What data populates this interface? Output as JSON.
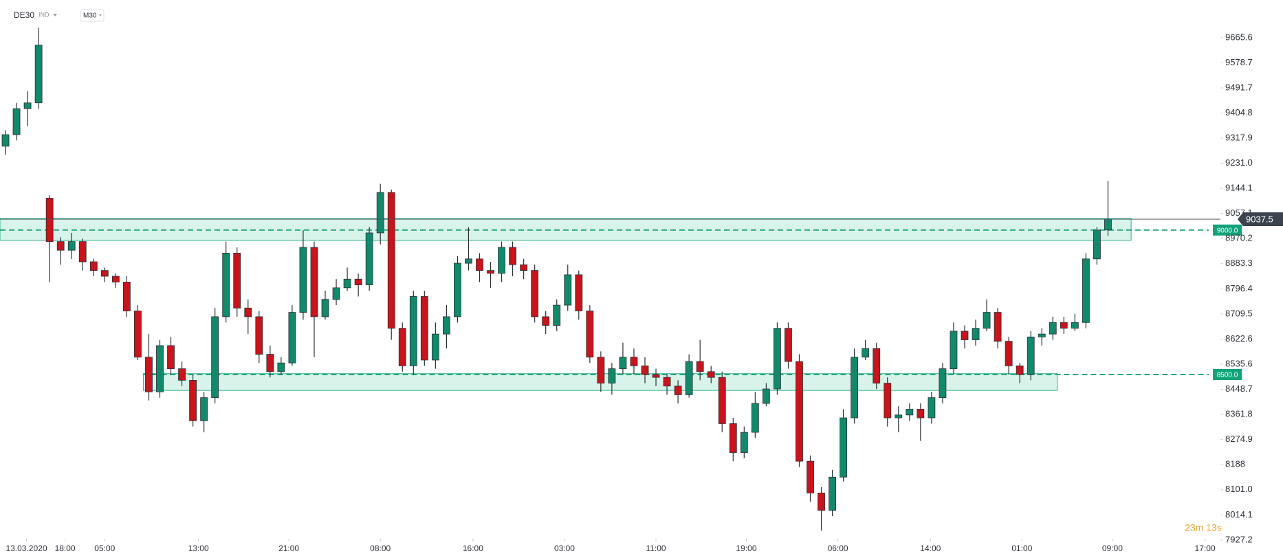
{
  "chart_data": {
    "type": "candlestick",
    "symbol": "DE30",
    "instrument_type": "IND",
    "timeframe": "M30",
    "countdown": "23m 13s",
    "up_color": "#13896b",
    "down_color": "#c8141b",
    "open": [
      9290,
      9330,
      9420,
      9440,
      9110,
      8960,
      8930,
      8960,
      8890,
      8860,
      8840,
      8820,
      8720,
      8560,
      8440,
      8600,
      8520,
      8480,
      8340,
      8420,
      8700,
      8920,
      8730,
      8700,
      8570,
      8510,
      8540,
      8715,
      8940,
      8700,
      8760,
      8800,
      8830,
      8810,
      8990,
      9130,
      8660,
      8530,
      8770,
      8550,
      8640,
      8700,
      8885,
      8900,
      8860,
      8850,
      8940,
      8880,
      8860,
      8700,
      8670,
      8740,
      8845,
      8720,
      8560,
      8470,
      8520,
      8560,
      8530,
      8500,
      8490,
      8460,
      8430,
      8545,
      8510,
      8490,
      8330,
      8230,
      8300,
      8400,
      8450,
      8660,
      8545,
      8200,
      8090,
      8030,
      8145,
      8350,
      8560,
      8590,
      8470,
      8350,
      8360,
      8380,
      8350,
      8420,
      8520,
      8650,
      8620,
      8660,
      8715,
      8615,
      8530,
      8500,
      8630,
      8640,
      8680,
      8660,
      8680,
      8900,
      9000
    ],
    "high": [
      9345,
      9440,
      9480,
      9700,
      9120,
      8975,
      8990,
      8970,
      8900,
      8870,
      8850,
      8840,
      8740,
      8640,
      8620,
      8630,
      8545,
      8500,
      8440,
      8730,
      8960,
      8940,
      8760,
      8720,
      8600,
      8560,
      8740,
      9000,
      8960,
      8790,
      8830,
      8870,
      8850,
      9010,
      9160,
      9140,
      8680,
      8790,
      8790,
      8680,
      8740,
      8910,
      9010,
      8920,
      8890,
      8960,
      8960,
      8900,
      8880,
      8720,
      8760,
      8880,
      8860,
      8740,
      8580,
      8540,
      8610,
      8590,
      8560,
      8520,
      8500,
      8480,
      8570,
      8620,
      8530,
      8510,
      8350,
      8320,
      8440,
      8470,
      8680,
      8680,
      8570,
      8220,
      8110,
      8170,
      8380,
      8590,
      8620,
      8610,
      8490,
      8390,
      8400,
      8400,
      8440,
      8540,
      8680,
      8670,
      8690,
      8760,
      8730,
      8630,
      8540,
      8650,
      8660,
      8700,
      8700,
      8710,
      8920,
      9010,
      9170
    ],
    "low": [
      9260,
      9310,
      9360,
      9420,
      8820,
      8880,
      8900,
      8860,
      8840,
      8820,
      8800,
      8700,
      8550,
      8410,
      8420,
      8500,
      8460,
      8320,
      8300,
      8400,
      8680,
      8700,
      8640,
      8540,
      8490,
      8500,
      8530,
      8690,
      8560,
      8690,
      8740,
      8790,
      8770,
      8790,
      8950,
      8620,
      8510,
      8500,
      8530,
      8520,
      8590,
      8680,
      8860,
      8820,
      8800,
      8820,
      8840,
      8830,
      8680,
      8640,
      8650,
      8720,
      8690,
      8540,
      8440,
      8430,
      8500,
      8500,
      8470,
      8460,
      8430,
      8400,
      8420,
      8480,
      8470,
      8300,
      8200,
      8210,
      8280,
      8390,
      8430,
      8520,
      8180,
      8060,
      7960,
      8010,
      8130,
      8330,
      8550,
      8450,
      8320,
      8300,
      8340,
      8270,
      8330,
      8400,
      8500,
      8590,
      8600,
      8650,
      8590,
      8500,
      8470,
      8480,
      8600,
      8620,
      8640,
      8650,
      8660,
      8880,
      8980
    ],
    "close": [
      9330,
      9420,
      9440,
      9640,
      8960,
      8930,
      8960,
      8890,
      8860,
      8840,
      8820,
      8720,
      8560,
      8440,
      8600,
      8520,
      8480,
      8340,
      8420,
      8700,
      8920,
      8730,
      8700,
      8570,
      8510,
      8540,
      8715,
      8940,
      8700,
      8760,
      8800,
      8830,
      8810,
      8990,
      9130,
      8660,
      8530,
      8770,
      8550,
      8640,
      8700,
      8885,
      8900,
      8860,
      8850,
      8940,
      8880,
      8860,
      8700,
      8670,
      8740,
      8845,
      8720,
      8560,
      8470,
      8520,
      8560,
      8530,
      8500,
      8490,
      8460,
      8430,
      8545,
      8510,
      8490,
      8330,
      8230,
      8300,
      8400,
      8450,
      8660,
      8545,
      8200,
      8090,
      8030,
      8145,
      8350,
      8560,
      8590,
      8470,
      8350,
      8360,
      8380,
      8350,
      8420,
      8520,
      8650,
      8620,
      8660,
      8715,
      8615,
      8530,
      8500,
      8630,
      8640,
      8680,
      8660,
      8680,
      8900,
      9000,
      9037.5
    ],
    "xlim": [
      -0.5,
      110.2
    ],
    "xticks": [
      {
        "value": 1.9,
        "label": "13.03.2020"
      },
      {
        "value": 5.4,
        "label": "18:00"
      },
      {
        "value": 9.0,
        "label": "05:00"
      },
      {
        "value": 17.5,
        "label": "13:00"
      },
      {
        "value": 25.7,
        "label": "21:00"
      },
      {
        "value": 34.0,
        "label": "08:00"
      },
      {
        "value": 42.4,
        "label": "16:00"
      },
      {
        "value": 50.7,
        "label": "03:00"
      },
      {
        "value": 59.0,
        "label": "11:00"
      },
      {
        "value": 67.2,
        "label": "19:00"
      },
      {
        "value": 75.5,
        "label": "06:00"
      },
      {
        "value": 83.9,
        "label": "14:00"
      },
      {
        "value": 92.2,
        "label": "01:00"
      },
      {
        "value": 100.4,
        "label": "09:00"
      },
      {
        "value": 108.8,
        "label": "17:00"
      }
    ],
    "ylim": [
      7934,
      9796
    ],
    "yticks": [
      9665.6,
      9578.7,
      9491.7,
      9404.8,
      9317.9,
      {
        "value": 9231,
        "label": "9231.0"
      },
      9144.1,
      9057.1,
      8970.2,
      8883.3,
      8796.4,
      8709.5,
      8622.6,
      8535.6,
      8448.7,
      8361.8,
      8274.9,
      8188.0,
      {
        "value": 8101,
        "label": "8101.0"
      },
      8014.1,
      7927.2
    ],
    "zones": [
      {
        "label": "9000.0",
        "level": 9000,
        "top": 9040,
        "bottom": 8965,
        "start": -0.5,
        "end": 102.1
      },
      {
        "label": "8500.0",
        "level": 8500,
        "top": 8503,
        "bottom": 8445,
        "start": 12.5,
        "end": 95.4
      }
    ]
  }
}
